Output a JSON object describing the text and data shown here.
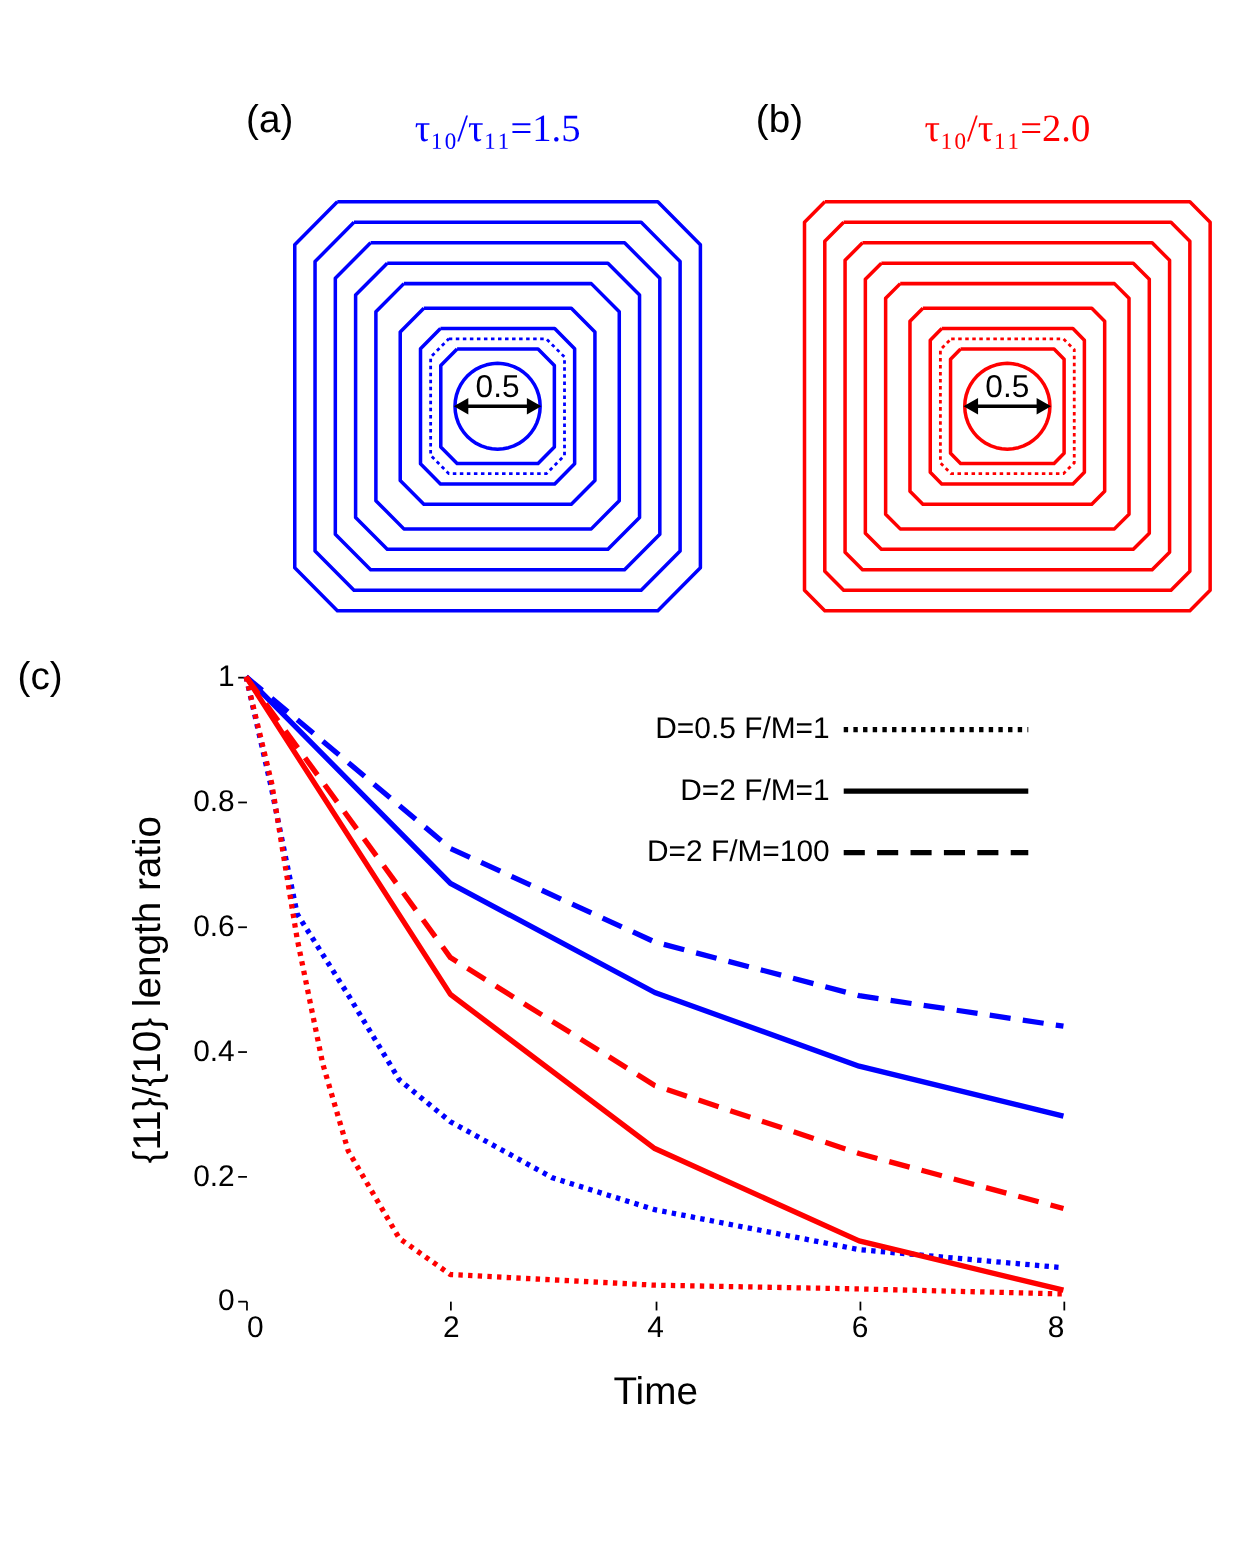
{
  "chart_data": [
    {
      "type": "other",
      "title": "τ₁₀/τ₁₁=1.5",
      "annotations": [
        "(a)",
        "0.5"
      ],
      "colors": [
        "#0000ff"
      ]
    },
    {
      "type": "other",
      "title": "τ₁₀/τ₁₁=2.0",
      "annotations": [
        "(b)",
        "0.5"
      ],
      "colors": [
        "#ff0000"
      ]
    },
    {
      "type": "line",
      "annotations": [
        "(c)",
        "D=0.5 F/M=1",
        "D=2 F/M=1",
        "D=2 F/M=100"
      ],
      "xlabel": "Time",
      "ylabel": "{11}/{10} length ratio",
      "xlim": [
        0,
        8
      ],
      "ylim": [
        0,
        1
      ],
      "xticks": [
        0,
        2,
        4,
        6,
        8
      ],
      "yticks": [
        0,
        0.2,
        0.4,
        0.6,
        0.8,
        1
      ],
      "grid": false,
      "marker": "none",
      "series": [
        {
          "color": "#0000ff",
          "line_style": "dotted",
          "x": [
            0,
            0.25,
            0.5,
            1,
            1.5,
            2,
            3,
            4,
            6,
            8
          ],
          "values": [
            1,
            0.82,
            0.62,
            0.49,
            0.354,
            0.287,
            0.197,
            0.146,
            0.082,
            0.053
          ]
        },
        {
          "color": "#0000ff",
          "line_style": "solid",
          "x": [
            0,
            2,
            4,
            6,
            8
          ],
          "values": [
            1,
            0.669,
            0.494,
            0.376,
            0.296
          ]
        },
        {
          "color": "#0000ff",
          "line_style": "dashed",
          "x": [
            0,
            2,
            4,
            6,
            8
          ],
          "values": [
            1,
            0.725,
            0.575,
            0.489,
            0.44
          ]
        },
        {
          "color": "#ff0000",
          "line_style": "dotted",
          "x": [
            0,
            0.25,
            0.5,
            0.75,
            1,
            1.5,
            2,
            4,
            6,
            8
          ],
          "values": [
            1,
            0.83,
            0.58,
            0.38,
            0.24,
            0.1,
            0.042,
            0.025,
            0.019,
            0.011
          ]
        },
        {
          "color": "#ff0000",
          "line_style": "solid",
          "x": [
            0,
            2,
            4,
            6,
            8
          ],
          "values": [
            1,
            0.491,
            0.244,
            0.096,
            0.017
          ]
        },
        {
          "color": "#ff0000",
          "line_style": "dashed",
          "x": [
            0,
            2,
            4,
            6,
            8
          ],
          "values": [
            1,
            0.55,
            0.345,
            0.236,
            0.148
          ]
        }
      ]
    }
  ]
}
